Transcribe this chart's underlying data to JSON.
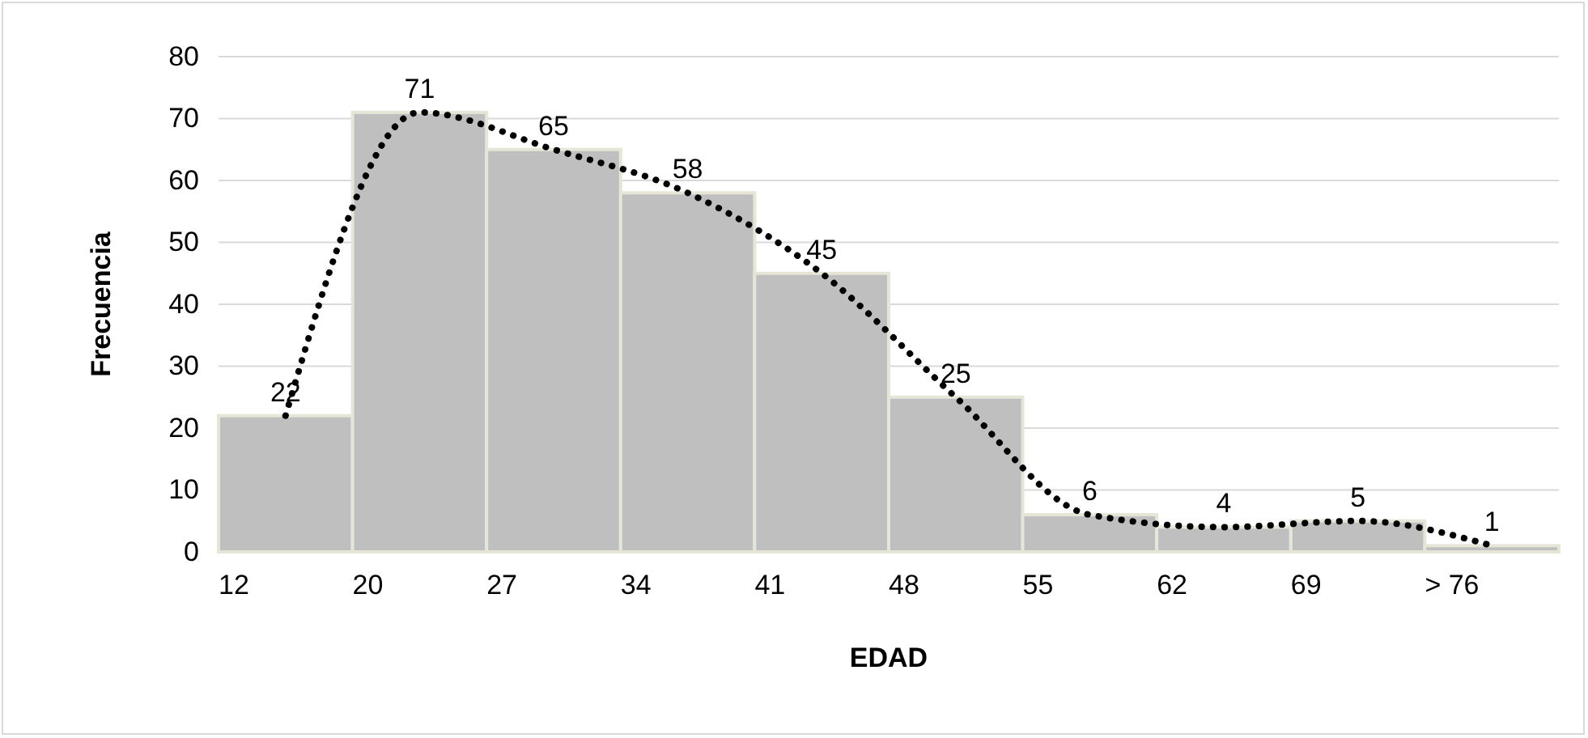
{
  "chart_data": {
    "type": "bar",
    "xlabel": "EDAD",
    "ylabel": "Frecuencia",
    "categories": [
      "12",
      "20",
      "27",
      "34",
      "41",
      "48",
      "55",
      "62",
      "69",
      "> 76"
    ],
    "series": [
      {
        "color": "#bfbfbf",
        "values": [
          22,
          71,
          65,
          58,
          45,
          25,
          6,
          4,
          5,
          1
        ]
      },
      {
        "type": "line",
        "color": "#000000",
        "line_style": "dotted",
        "values": [
          22,
          71,
          65,
          58,
          45,
          25,
          6,
          4,
          5,
          1
        ],
        "value_labels": [
          "22",
          "71",
          "65",
          "58",
          "45",
          "25",
          "6",
          "4",
          "5",
          "1"
        ]
      }
    ],
    "ylim": [
      0,
      80
    ],
    "yticks": [
      0,
      10,
      20,
      30,
      40,
      50,
      60,
      70,
      80
    ],
    "grid": "y"
  }
}
